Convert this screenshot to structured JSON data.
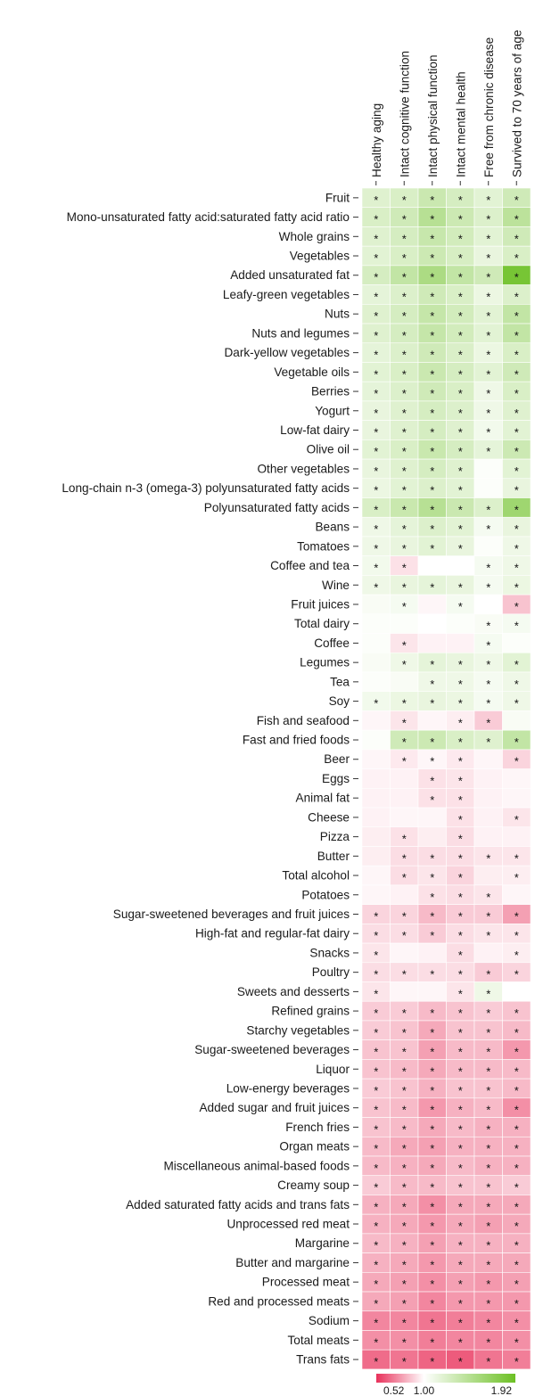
{
  "chart_data": {
    "type": "heatmap",
    "columns": [
      "Healthy aging",
      "Intact cognitive function",
      "Intact physical function",
      "Intact mental health",
      "Free from chronic disease",
      "Survived to 70 years of age"
    ],
    "rows": [
      "Fruit",
      "Mono-unsaturated fatty acid:saturated fatty acid ratio",
      "Whole grains",
      "Vegetables",
      "Added unsaturated fat",
      "Leafy-green vegetables",
      "Nuts",
      "Nuts and legumes",
      "Dark-yellow vegetables",
      "Vegetable oils",
      "Berries",
      "Yogurt",
      "Low-fat dairy",
      "Olive oil",
      "Other vegetables",
      "Long-chain n-3 (omega-3) polyunsaturated fatty acids",
      "Polyunsaturated fatty acids",
      "Beans",
      "Tomatoes",
      "Coffee and tea",
      "Wine",
      "Fruit juices",
      "Total dairy",
      "Coffee",
      "Legumes",
      "Tea",
      "Soy",
      "Fish and seafood",
      "Fast and fried foods",
      "Beer",
      "Eggs",
      "Animal fat",
      "Cheese",
      "Pizza",
      "Butter",
      "Total alcohol",
      "Potatoes",
      "Sugar-sweetened beverages and fruit juices",
      "High-fat and regular-fat dairy",
      "Snacks",
      "Poultry",
      "Sweets and desserts",
      "Refined grains",
      "Starchy vegetables",
      "Sugar-sweetened beverages",
      "Liquor",
      "Low-energy beverages",
      "Added sugar and fruit juices",
      "French fries",
      "Organ meats",
      "Miscellaneous animal-based foods",
      "Creamy soup",
      "Added saturated fatty acids and trans fats",
      "Unprocessed red meat",
      "Margarine",
      "Butter and margarine",
      "Processed meat",
      "Red and processed meats",
      "Sodium",
      "Total meats",
      "Trans fats"
    ],
    "values": [
      [
        1.2,
        1.24,
        1.33,
        1.26,
        1.18,
        1.3
      ],
      [
        1.24,
        1.3,
        1.45,
        1.32,
        1.22,
        1.42
      ],
      [
        1.2,
        1.26,
        1.35,
        1.28,
        1.18,
        1.3
      ],
      [
        1.18,
        1.24,
        1.32,
        1.25,
        1.14,
        1.24
      ],
      [
        1.26,
        1.38,
        1.52,
        1.38,
        1.3,
        1.85
      ],
      [
        1.16,
        1.22,
        1.3,
        1.24,
        1.12,
        1.22
      ],
      [
        1.2,
        1.26,
        1.36,
        1.28,
        1.18,
        1.38
      ],
      [
        1.2,
        1.26,
        1.36,
        1.28,
        1.18,
        1.38
      ],
      [
        1.16,
        1.22,
        1.3,
        1.23,
        1.12,
        1.24
      ],
      [
        1.18,
        1.24,
        1.33,
        1.26,
        1.18,
        1.3
      ],
      [
        1.16,
        1.22,
        1.3,
        1.24,
        1.1,
        1.24
      ],
      [
        1.14,
        1.2,
        1.26,
        1.22,
        1.1,
        1.2
      ],
      [
        1.14,
        1.2,
        1.26,
        1.2,
        1.08,
        1.18
      ],
      [
        1.18,
        1.24,
        1.34,
        1.26,
        1.16,
        1.32
      ],
      [
        1.14,
        1.2,
        1.26,
        1.2,
        1.02,
        1.18
      ],
      [
        1.12,
        1.18,
        1.22,
        1.18,
        1.02,
        1.14
      ],
      [
        1.24,
        1.34,
        1.45,
        1.33,
        1.22,
        1.6
      ],
      [
        1.1,
        1.16,
        1.22,
        1.18,
        1.06,
        1.14
      ],
      [
        1.1,
        1.14,
        1.18,
        1.14,
        1.02,
        1.1
      ],
      [
        1.08,
        0.93,
        1.0,
        1.0,
        1.06,
        1.1
      ],
      [
        1.1,
        1.14,
        1.16,
        1.14,
        1.06,
        1.12
      ],
      [
        1.04,
        1.06,
        0.98,
        1.06,
        1.0,
        0.86
      ],
      [
        1.02,
        1.02,
        1.0,
        1.02,
        1.04,
        1.06
      ],
      [
        1.02,
        0.94,
        0.97,
        0.97,
        1.06,
        1.02
      ],
      [
        1.04,
        1.1,
        1.16,
        1.14,
        1.1,
        1.18
      ],
      [
        1.02,
        1.04,
        1.1,
        1.1,
        1.06,
        1.1
      ],
      [
        1.08,
        1.12,
        1.14,
        1.12,
        1.06,
        1.1
      ],
      [
        0.98,
        0.94,
        0.98,
        0.96,
        0.88,
        1.04
      ],
      [
        1.02,
        1.3,
        1.32,
        1.24,
        1.2,
        1.38
      ],
      [
        0.98,
        0.95,
        0.98,
        0.95,
        0.98,
        0.9
      ],
      [
        0.97,
        0.97,
        0.93,
        0.94,
        0.97,
        0.98
      ],
      [
        0.97,
        0.97,
        0.93,
        0.93,
        0.97,
        0.98
      ],
      [
        0.97,
        0.98,
        0.98,
        0.93,
        0.97,
        0.94
      ],
      [
        0.96,
        0.93,
        0.96,
        0.92,
        0.97,
        0.97
      ],
      [
        0.96,
        0.92,
        0.92,
        0.92,
        0.94,
        0.94
      ],
      [
        0.98,
        0.92,
        0.94,
        0.9,
        0.96,
        0.96
      ],
      [
        0.98,
        0.97,
        0.93,
        0.92,
        0.94,
        0.98
      ],
      [
        0.9,
        0.9,
        0.84,
        0.88,
        0.88,
        0.78
      ],
      [
        0.92,
        0.92,
        0.88,
        0.92,
        0.94,
        0.94
      ],
      [
        0.94,
        0.98,
        0.97,
        0.92,
        0.97,
        0.96
      ],
      [
        0.92,
        0.92,
        0.92,
        0.92,
        0.88,
        0.9
      ],
      [
        0.94,
        0.98,
        0.98,
        0.94,
        1.1,
        1.0
      ],
      [
        0.88,
        0.88,
        0.84,
        0.86,
        0.88,
        0.86
      ],
      [
        0.88,
        0.86,
        0.8,
        0.86,
        0.86,
        0.84
      ],
      [
        0.86,
        0.86,
        0.78,
        0.84,
        0.84,
        0.76
      ],
      [
        0.86,
        0.84,
        0.8,
        0.84,
        0.84,
        0.84
      ],
      [
        0.88,
        0.86,
        0.82,
        0.86,
        0.86,
        0.84
      ],
      [
        0.86,
        0.84,
        0.76,
        0.82,
        0.84,
        0.74
      ],
      [
        0.86,
        0.84,
        0.8,
        0.84,
        0.82,
        0.82
      ],
      [
        0.84,
        0.8,
        0.78,
        0.82,
        0.82,
        0.82
      ],
      [
        0.84,
        0.82,
        0.8,
        0.84,
        0.82,
        0.82
      ],
      [
        0.88,
        0.84,
        0.84,
        0.86,
        0.86,
        0.88
      ],
      [
        0.82,
        0.8,
        0.74,
        0.8,
        0.8,
        0.8
      ],
      [
        0.82,
        0.8,
        0.76,
        0.8,
        0.78,
        0.8
      ],
      [
        0.84,
        0.82,
        0.78,
        0.82,
        0.82,
        0.82
      ],
      [
        0.82,
        0.8,
        0.76,
        0.8,
        0.8,
        0.8
      ],
      [
        0.8,
        0.78,
        0.74,
        0.78,
        0.76,
        0.78
      ],
      [
        0.8,
        0.78,
        0.72,
        0.76,
        0.76,
        0.76
      ],
      [
        0.72,
        0.72,
        0.68,
        0.7,
        0.72,
        0.74
      ],
      [
        0.74,
        0.74,
        0.7,
        0.72,
        0.72,
        0.74
      ],
      [
        0.66,
        0.68,
        0.64,
        0.62,
        0.68,
        0.7
      ]
    ],
    "significant": [
      [
        1,
        1,
        1,
        1,
        1,
        1
      ],
      [
        1,
        1,
        1,
        1,
        1,
        1
      ],
      [
        1,
        1,
        1,
        1,
        1,
        1
      ],
      [
        1,
        1,
        1,
        1,
        1,
        1
      ],
      [
        1,
        1,
        1,
        1,
        1,
        1
      ],
      [
        1,
        1,
        1,
        1,
        1,
        1
      ],
      [
        1,
        1,
        1,
        1,
        1,
        1
      ],
      [
        1,
        1,
        1,
        1,
        1,
        1
      ],
      [
        1,
        1,
        1,
        1,
        1,
        1
      ],
      [
        1,
        1,
        1,
        1,
        1,
        1
      ],
      [
        1,
        1,
        1,
        1,
        1,
        1
      ],
      [
        1,
        1,
        1,
        1,
        1,
        1
      ],
      [
        1,
        1,
        1,
        1,
        1,
        1
      ],
      [
        1,
        1,
        1,
        1,
        1,
        1
      ],
      [
        1,
        1,
        1,
        1,
        0,
        1
      ],
      [
        1,
        1,
        1,
        1,
        0,
        1
      ],
      [
        1,
        1,
        1,
        1,
        1,
        1
      ],
      [
        1,
        1,
        1,
        1,
        1,
        1
      ],
      [
        1,
        1,
        1,
        1,
        0,
        1
      ],
      [
        1,
        1,
        0,
        0,
        1,
        1
      ],
      [
        1,
        1,
        1,
        1,
        1,
        1
      ],
      [
        0,
        1,
        0,
        1,
        0,
        1
      ],
      [
        0,
        0,
        0,
        0,
        1,
        1
      ],
      [
        0,
        1,
        0,
        0,
        1,
        0
      ],
      [
        0,
        1,
        1,
        1,
        1,
        1
      ],
      [
        0,
        0,
        1,
        1,
        1,
        1
      ],
      [
        1,
        1,
        1,
        1,
        1,
        1
      ],
      [
        0,
        1,
        0,
        1,
        1,
        0
      ],
      [
        0,
        1,
        1,
        1,
        1,
        1
      ],
      [
        0,
        1,
        1,
        1,
        0,
        1
      ],
      [
        0,
        0,
        1,
        1,
        0,
        0
      ],
      [
        0,
        0,
        1,
        1,
        0,
        0
      ],
      [
        0,
        0,
        0,
        1,
        0,
        1
      ],
      [
        0,
        1,
        0,
        1,
        0,
        0
      ],
      [
        0,
        1,
        1,
        1,
        1,
        1
      ],
      [
        0,
        1,
        1,
        1,
        0,
        1
      ],
      [
        0,
        0,
        1,
        1,
        1,
        0
      ],
      [
        1,
        1,
        1,
        1,
        1,
        1
      ],
      [
        1,
        1,
        1,
        1,
        1,
        1
      ],
      [
        1,
        0,
        0,
        1,
        0,
        1
      ],
      [
        1,
        1,
        1,
        1,
        1,
        1
      ],
      [
        1,
        0,
        0,
        1,
        1,
        0
      ],
      [
        1,
        1,
        1,
        1,
        1,
        1
      ],
      [
        1,
        1,
        1,
        1,
        1,
        1
      ],
      [
        1,
        1,
        1,
        1,
        1,
        1
      ],
      [
        1,
        1,
        1,
        1,
        1,
        1
      ],
      [
        1,
        1,
        1,
        1,
        1,
        1
      ],
      [
        1,
        1,
        1,
        1,
        1,
        1
      ],
      [
        1,
        1,
        1,
        1,
        1,
        1
      ],
      [
        1,
        1,
        1,
        1,
        1,
        1
      ],
      [
        1,
        1,
        1,
        1,
        1,
        1
      ],
      [
        1,
        1,
        1,
        1,
        1,
        1
      ],
      [
        1,
        1,
        1,
        1,
        1,
        1
      ],
      [
        1,
        1,
        1,
        1,
        1,
        1
      ],
      [
        1,
        1,
        1,
        1,
        1,
        1
      ],
      [
        1,
        1,
        1,
        1,
        1,
        1
      ],
      [
        1,
        1,
        1,
        1,
        1,
        1
      ],
      [
        1,
        1,
        1,
        1,
        1,
        1
      ],
      [
        1,
        1,
        1,
        1,
        1,
        1
      ],
      [
        1,
        1,
        1,
        1,
        1,
        1
      ],
      [
        1,
        1,
        1,
        1,
        1,
        1
      ]
    ],
    "significance_marker": "*",
    "color_scale": {
      "min": 0.52,
      "mid": 1.0,
      "max": 1.92,
      "min_color": "#e8305a",
      "mid_color": "#ffffff",
      "max_color": "#6cc024",
      "ticks": [
        "0.52",
        "1.00",
        "1.92"
      ]
    }
  }
}
